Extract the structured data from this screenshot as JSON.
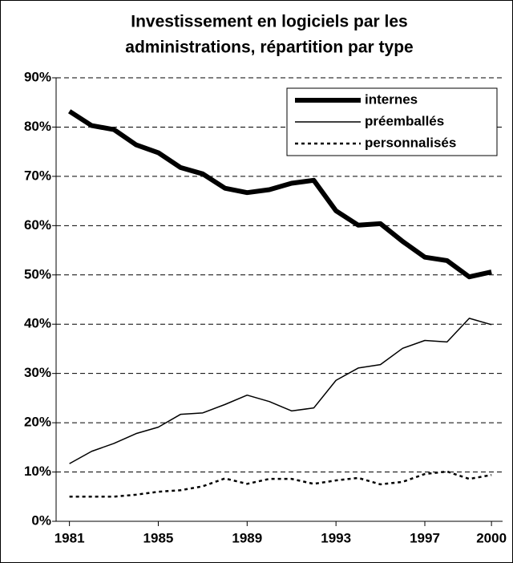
{
  "chart_data": {
    "type": "line",
    "title": [
      "Investissement en logiciels par les",
      "administrations, répartition par type"
    ],
    "x": [
      1981,
      1982,
      1983,
      1984,
      1985,
      1986,
      1987,
      1988,
      1989,
      1990,
      1991,
      1992,
      1993,
      1994,
      1995,
      1996,
      1997,
      1998,
      1999,
      2000
    ],
    "xlim": [
      1980.4,
      2000.5
    ],
    "xticks": [
      1981,
      1985,
      1989,
      1993,
      1997,
      2000
    ],
    "ylim": [
      0,
      90
    ],
    "yticks": [
      {
        "value": 0,
        "label": "0%"
      },
      {
        "value": 10,
        "label": "10%"
      },
      {
        "value": 20,
        "label": "20%"
      },
      {
        "value": 30,
        "label": "30%"
      },
      {
        "value": 40,
        "label": "40%"
      },
      {
        "value": 50,
        "label": "50%"
      },
      {
        "value": 60,
        "label": "60%"
      },
      {
        "value": 70,
        "label": "70%"
      },
      {
        "value": 80,
        "label": "80%"
      },
      {
        "value": 90,
        "label": "90%"
      }
    ],
    "grid": true,
    "legend": "top-right",
    "series": [
      {
        "name": "internes",
        "color": "#000000",
        "width": 6,
        "dash": "none",
        "values": [
          83.2,
          80.3,
          79.5,
          76.4,
          74.8,
          71.8,
          70.5,
          67.6,
          66.7,
          67.3,
          68.6,
          69.2,
          63.0,
          60.1,
          60.4,
          56.8,
          53.6,
          52.9,
          49.6,
          50.6
        ]
      },
      {
        "name": "préemballés",
        "color": "#000000",
        "width": 1.5,
        "dash": "none",
        "values": [
          11.7,
          14.2,
          15.8,
          17.8,
          19.1,
          21.7,
          22.0,
          23.7,
          25.6,
          24.3,
          22.4,
          23.0,
          28.6,
          31.1,
          31.8,
          35.1,
          36.7,
          36.4,
          41.2,
          39.9
        ]
      },
      {
        "name": "personnalisés",
        "color": "#000000",
        "width": 2.5,
        "dash": "4 4",
        "values": [
          5.0,
          5.0,
          5.0,
          5.4,
          6.0,
          6.3,
          7.1,
          8.7,
          7.6,
          8.6,
          8.6,
          7.6,
          8.3,
          8.8,
          7.5,
          8.0,
          9.6,
          10.1,
          8.6,
          9.4
        ]
      }
    ]
  }
}
